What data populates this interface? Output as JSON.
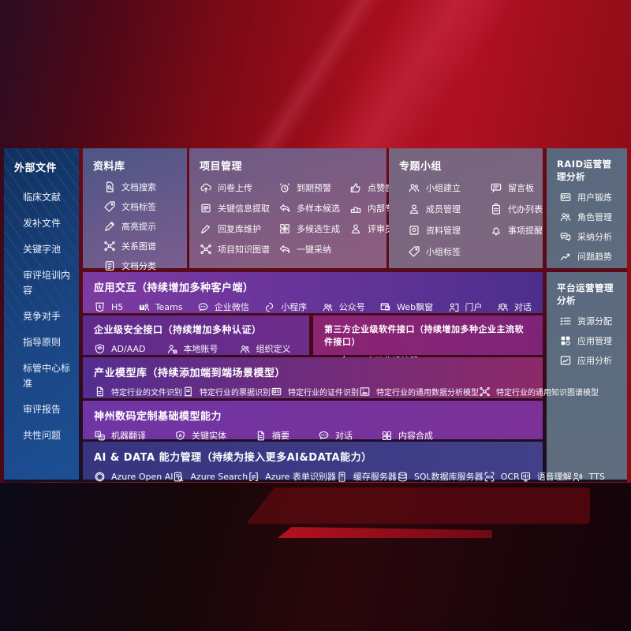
{
  "colors": {
    "background_red": "#a50e1c",
    "sidebar_blue": "#1a4583",
    "row_purple": "#69349c",
    "row_indigo": "#37357f",
    "row_magenta": "#8c2373",
    "panel_slate": "#5b6a7f"
  },
  "sidebar": {
    "title": "外部文件",
    "items": [
      {
        "label": "临床文献",
        "name": "clinical-literature"
      },
      {
        "label": "发补文件",
        "name": "supplement-files"
      },
      {
        "label": "关键字池",
        "name": "keyword-pool"
      },
      {
        "label": "审评培训内容",
        "name": "review-training-content"
      },
      {
        "label": "竞争对手",
        "name": "competitors"
      },
      {
        "label": "指导原则",
        "name": "guiding-principles"
      },
      {
        "label": "标管中心标准",
        "name": "standards-center-standards"
      },
      {
        "label": "审评报告",
        "name": "review-reports"
      },
      {
        "label": "共性问题",
        "name": "common-issues"
      }
    ]
  },
  "library": {
    "title": "资料库",
    "items": [
      {
        "icon": "doc-search",
        "label": "文档搜索",
        "name": "doc-search"
      },
      {
        "icon": "tag",
        "label": "文档标签",
        "name": "doc-tags"
      },
      {
        "icon": "highlight-pen",
        "label": "高亮提示",
        "name": "highlight-tips"
      },
      {
        "icon": "relation-graph",
        "label": "关系图谱",
        "name": "relation-graph"
      },
      {
        "icon": "doc-classify",
        "label": "文档分类",
        "name": "doc-classify"
      }
    ]
  },
  "project": {
    "title": "项目管理",
    "items": [
      {
        "icon": "cloud-upload",
        "label": "问卷上传",
        "name": "questionnaire-upload"
      },
      {
        "icon": "alarm",
        "label": "到期预警",
        "name": "due-alert"
      },
      {
        "icon": "thumbs-up",
        "label": "点赞感谢",
        "name": "like-thanks"
      },
      {
        "icon": "doc-info",
        "label": "关键信息提取",
        "name": "key-info-extraction"
      },
      {
        "icon": "reply-arrow",
        "label": "多样本候选",
        "name": "multi-sample-candidates"
      },
      {
        "icon": "podium",
        "label": "内部专家排名",
        "name": "internal-expert-ranking"
      },
      {
        "icon": "pen",
        "label": "回复库维护",
        "name": "reply-library-maintenance"
      },
      {
        "icon": "grid-gen",
        "label": "多候选生成",
        "name": "multi-candidate-generation"
      },
      {
        "icon": "person",
        "label": "评审员画像",
        "name": "reviewer-portrait"
      },
      {
        "icon": "relation-graph",
        "label": "项目知识图谱",
        "name": "project-knowledge-graph"
      },
      {
        "icon": "reply-arrow",
        "label": "一键采纳",
        "name": "one-click-adopt"
      }
    ]
  },
  "topic": {
    "title": "专题小组",
    "items": [
      {
        "icon": "people",
        "label": "小组建立",
        "name": "group-create"
      },
      {
        "icon": "bbs",
        "label": "留言板",
        "name": "message-board"
      },
      {
        "icon": "person",
        "label": "成员管理",
        "name": "member-management"
      },
      {
        "icon": "clipboard",
        "label": "代办列表",
        "name": "todo-list"
      },
      {
        "icon": "album",
        "label": "资料管理",
        "name": "material-management"
      },
      {
        "icon": "bell",
        "label": "事项提醒",
        "name": "matter-reminder"
      },
      {
        "icon": "tag",
        "label": "小组标签",
        "name": "group-tags"
      }
    ]
  },
  "raid": {
    "title": "RAID运营管理分析",
    "items": [
      {
        "icon": "id-card",
        "label": "用户锻炼",
        "name": "user-training"
      },
      {
        "icon": "people",
        "label": "角色管理",
        "name": "role-management"
      },
      {
        "icon": "chat-analysis",
        "label": "采纳分析",
        "name": "adoption-analysis"
      },
      {
        "icon": "trend",
        "label": "问题趋势",
        "name": "issue-trend"
      }
    ]
  },
  "platform": {
    "title": "平台运营管理分析",
    "items": [
      {
        "icon": "sliders-list",
        "label": "资源分配",
        "name": "resource-allocation"
      },
      {
        "icon": "app-grid",
        "label": "应用管理",
        "name": "app-management"
      },
      {
        "icon": "chart-card",
        "label": "应用分析",
        "name": "app-analysis"
      }
    ]
  },
  "interaction": {
    "title": "应用交互（持续增加多种客户端）",
    "items": [
      {
        "icon": "h5",
        "label": "H5",
        "name": "h5-client"
      },
      {
        "icon": "teams",
        "label": "Teams",
        "name": "teams-client"
      },
      {
        "icon": "wecom",
        "label": "企业微信",
        "name": "wecom-client"
      },
      {
        "icon": "miniprogram",
        "label": "小程序",
        "name": "mini-program-client"
      },
      {
        "icon": "people",
        "label": "公众号",
        "name": "official-account-client"
      },
      {
        "icon": "web-popup",
        "label": "Web飘窗",
        "name": "web-popup-client"
      },
      {
        "icon": "portal",
        "label": "门户",
        "name": "portal-client"
      },
      {
        "icon": "dialog",
        "label": "对话",
        "name": "dialog-client"
      }
    ]
  },
  "security": {
    "title": "企业级安全接口（持续增加多种认证）",
    "items": [
      {
        "icon": "shield-ad",
        "label": "AD/AAD",
        "name": "ad-aad-auth"
      },
      {
        "icon": "person-badge",
        "label": "本地账号",
        "name": "local-account-auth"
      },
      {
        "icon": "people",
        "label": "组织定义",
        "name": "org-definition-auth"
      }
    ]
  },
  "thirdparty": {
    "title": "第三方企业级软件接口（持续增加多种企业主流软件接口）",
    "items": [
      {
        "icon": "api-gear",
        "label": "API自动化设计器",
        "name": "api-auto-designer"
      }
    ]
  },
  "models": {
    "title": "产业模型库（持续添加端到端场景模型）",
    "items": [
      {
        "icon": "summary-doc",
        "label": "特定行业的文件识别",
        "name": "industry-file-recognition"
      },
      {
        "icon": "receipt",
        "label": "特定行业的票据识别",
        "name": "industry-invoice-recognition"
      },
      {
        "icon": "id-card",
        "label": "特定行业的证件识别",
        "name": "industry-id-recognition"
      },
      {
        "icon": "image-chart",
        "label": "特定行业的通用数据分析模型",
        "name": "industry-data-analysis-model"
      },
      {
        "icon": "relation-graph",
        "label": "特定行业的通用知识图谱模型",
        "name": "industry-knowledge-graph-model"
      }
    ]
  },
  "foundation": {
    "title": "神州数码定制基础模型能力",
    "items": [
      {
        "icon": "translate",
        "label": "机器翻译",
        "name": "machine-translation"
      },
      {
        "icon": "entity-shield",
        "label": "关键实体",
        "name": "key-entity"
      },
      {
        "icon": "summary-doc",
        "label": "摘要",
        "name": "summary"
      },
      {
        "icon": "chat",
        "label": "对话",
        "name": "dialog-capability"
      },
      {
        "icon": "grid-gen",
        "label": "内容合成",
        "name": "content-composition"
      }
    ]
  },
  "aidata": {
    "title": "AI & DATA 能力管理（持续为接入更多AI&DATA能力）",
    "items": [
      {
        "icon": "openai",
        "label": "Azure Open AI",
        "name": "azure-openai"
      },
      {
        "icon": "search-doc",
        "label": "Azure Search",
        "name": "azure-search"
      },
      {
        "icon": "form-recognizer",
        "label": "Azure 表单识别器",
        "name": "azure-form-recognizer"
      },
      {
        "icon": "server",
        "label": "缓存服务器",
        "name": "cache-server"
      },
      {
        "icon": "database",
        "label": "SQL数据库服务器",
        "name": "sql-db-server"
      },
      {
        "icon": "ocr",
        "label": "OCR",
        "name": "ocr"
      },
      {
        "icon": "speech",
        "label": "语音理解",
        "name": "speech-understanding"
      },
      {
        "icon": "tts",
        "label": "TTS",
        "name": "tts"
      }
    ]
  }
}
